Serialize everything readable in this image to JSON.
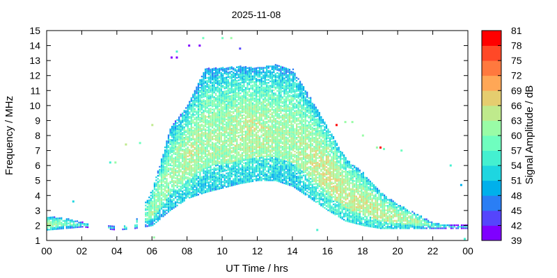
{
  "chart_data": {
    "type": "heatmap",
    "title": "2025-11-08",
    "xlabel": "UT Time / hrs",
    "ylabel": "Frequency / MHz",
    "colorbar_label": "Signal Amplitude / dB",
    "xlim": [
      0,
      24
    ],
    "ylim": [
      1,
      15
    ],
    "x_ticks": [
      "00",
      "02",
      "04",
      "06",
      "08",
      "10",
      "12",
      "14",
      "16",
      "18",
      "20",
      "22",
      "00"
    ],
    "y_ticks": [
      "1",
      "2",
      "3",
      "4",
      "5",
      "6",
      "7",
      "8",
      "9",
      "10",
      "11",
      "12",
      "13",
      "14",
      "15"
    ],
    "colorbar_ticks": [
      "39",
      "42",
      "45",
      "48",
      "51",
      "54",
      "57",
      "60",
      "63",
      "66",
      "69",
      "72",
      "75",
      "78",
      "81"
    ],
    "colorbar_range": [
      39,
      81
    ],
    "colormap": [
      "#7f00ff",
      "#5545fc",
      "#2a7ef5",
      "#00b0eb",
      "#1ed6e0",
      "#44f0d0",
      "#6ffebf",
      "#99fca6",
      "#bfea8c",
      "#e5cd6f",
      "#ffa756",
      "#ff793e",
      "#ff4827",
      "#ff0000"
    ],
    "grid": false,
    "data_envelope": [
      {
        "hour": 0.0,
        "fmin": 1.7,
        "fmax": 2.6,
        "level": 57
      },
      {
        "hour": 1.0,
        "fmin": 1.8,
        "fmax": 2.5,
        "level": 54
      },
      {
        "hour": 2.0,
        "fmin": 1.9,
        "fmax": 2.2,
        "level": 50
      },
      {
        "hour": 4.0,
        "fmin": 1.7,
        "fmax": 1.9,
        "level": 49
      },
      {
        "hour": 5.0,
        "fmin": 1.8,
        "fmax": 2.2,
        "level": 52
      },
      {
        "hour": 6.0,
        "fmin": 2.0,
        "fmax": 4.5,
        "level": 56
      },
      {
        "hour": 7.0,
        "fmin": 3.0,
        "fmax": 8.5,
        "level": 56
      },
      {
        "hour": 8.0,
        "fmin": 3.8,
        "fmax": 10.0,
        "level": 58
      },
      {
        "hour": 9.0,
        "fmin": 4.2,
        "fmax": 12.5,
        "level": 57
      },
      {
        "hour": 10.0,
        "fmin": 4.5,
        "fmax": 12.5,
        "level": 57
      },
      {
        "hour": 11.0,
        "fmin": 4.8,
        "fmax": 12.6,
        "level": 58
      },
      {
        "hour": 12.0,
        "fmin": 5.0,
        "fmax": 12.5,
        "level": 58
      },
      {
        "hour": 13.0,
        "fmin": 5.0,
        "fmax": 12.7,
        "level": 57
      },
      {
        "hour": 14.0,
        "fmin": 4.6,
        "fmax": 12.4,
        "level": 57
      },
      {
        "hour": 15.0,
        "fmin": 3.8,
        "fmax": 10.5,
        "level": 58
      },
      {
        "hour": 16.0,
        "fmin": 3.0,
        "fmax": 8.5,
        "level": 60
      },
      {
        "hour": 17.0,
        "fmin": 2.3,
        "fmax": 6.5,
        "level": 59
      },
      {
        "hour": 18.0,
        "fmin": 2.0,
        "fmax": 5.5,
        "level": 59
      },
      {
        "hour": 19.0,
        "fmin": 1.8,
        "fmax": 4.2,
        "level": 59
      },
      {
        "hour": 20.0,
        "fmin": 1.8,
        "fmax": 3.4,
        "level": 58
      },
      {
        "hour": 21.0,
        "fmin": 1.8,
        "fmax": 2.8,
        "level": 57
      },
      {
        "hour": 22.0,
        "fmin": 1.8,
        "fmax": 2.2,
        "level": 52
      },
      {
        "hour": 23.0,
        "fmin": 1.8,
        "fmax": 2.0,
        "level": 49
      }
    ],
    "isolated_points": [
      {
        "hour": 1.5,
        "freq": 3.6,
        "level": 52
      },
      {
        "hour": 3.6,
        "freq": 6.2,
        "level": 55
      },
      {
        "hour": 3.9,
        "freq": 6.2,
        "level": 60
      },
      {
        "hour": 4.5,
        "freq": 7.4,
        "level": 63
      },
      {
        "hour": 5.3,
        "freq": 7.5,
        "level": 58
      },
      {
        "hour": 6.0,
        "freq": 8.7,
        "level": 64
      },
      {
        "hour": 7.1,
        "freq": 13.2,
        "level": 40
      },
      {
        "hour": 7.4,
        "freq": 13.2,
        "level": 40
      },
      {
        "hour": 7.4,
        "freq": 13.6,
        "level": 55
      },
      {
        "hour": 8.1,
        "freq": 14.0,
        "level": 40
      },
      {
        "hour": 8.7,
        "freq": 14.0,
        "level": 40
      },
      {
        "hour": 8.9,
        "freq": 14.5,
        "level": 57
      },
      {
        "hour": 10.0,
        "freq": 14.5,
        "level": 58
      },
      {
        "hour": 10.5,
        "freq": 14.5,
        "level": 60
      },
      {
        "hour": 11.0,
        "freq": 13.8,
        "level": 43
      },
      {
        "hour": 16.5,
        "freq": 8.7,
        "level": 78
      },
      {
        "hour": 17.0,
        "freq": 8.9,
        "level": 62
      },
      {
        "hour": 17.4,
        "freq": 8.9,
        "level": 62
      },
      {
        "hour": 18.0,
        "freq": 8.0,
        "level": 62
      },
      {
        "hour": 18.8,
        "freq": 7.2,
        "level": 60
      },
      {
        "hour": 19.0,
        "freq": 7.2,
        "level": 80
      },
      {
        "hour": 19.2,
        "freq": 7.1,
        "level": 57
      },
      {
        "hour": 20.2,
        "freq": 7.0,
        "level": 59
      },
      {
        "hour": 23.0,
        "freq": 6.0,
        "level": 55
      },
      {
        "hour": 23.6,
        "freq": 4.7,
        "level": 50
      },
      {
        "hour": 23.8,
        "freq": 1.1,
        "level": 55
      },
      {
        "hour": 6.1,
        "freq": 1.2,
        "level": 60
      },
      {
        "hour": 15.4,
        "freq": 1.7,
        "level": 55
      }
    ]
  }
}
